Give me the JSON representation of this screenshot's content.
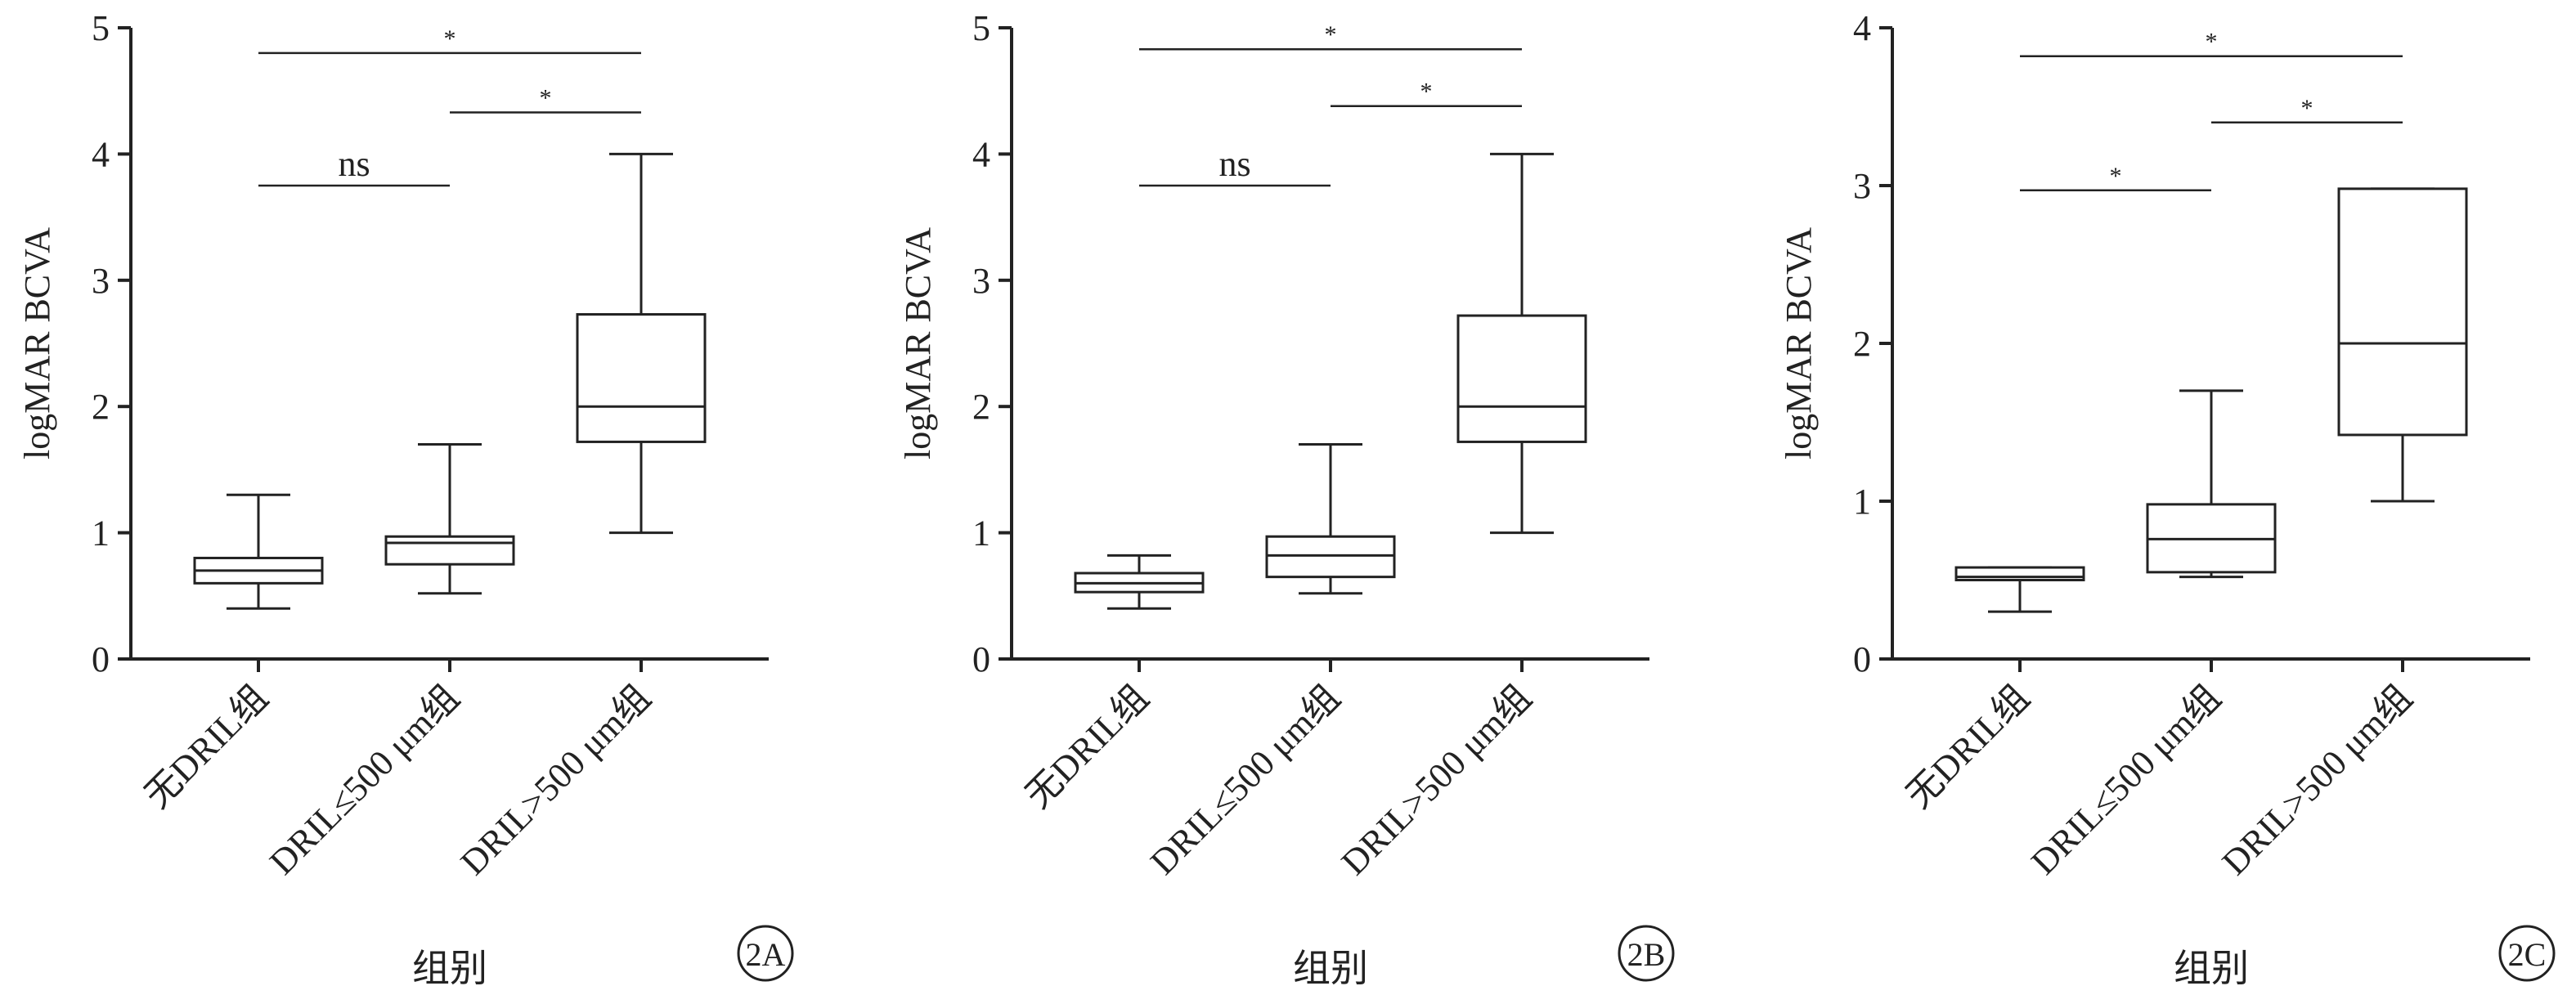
{
  "chart_data": [
    {
      "type": "box",
      "panel_label": "2A",
      "xlabel": "组别",
      "ylabel": "logMAR BCVA",
      "categories": [
        "无DRIL组",
        "DRIL≤500 μm组",
        "DRIL>500 μm组"
      ],
      "boxes": [
        {
          "min": 0.4,
          "q1": 0.6,
          "median": 0.7,
          "q3": 0.8,
          "max": 1.3
        },
        {
          "min": 0.52,
          "q1": 0.75,
          "median": 0.92,
          "q3": 0.97,
          "max": 1.7
        },
        {
          "min": 1.0,
          "q1": 1.72,
          "median": 2.0,
          "q3": 2.73,
          "max": 4.0
        }
      ],
      "ylim": [
        0,
        5
      ],
      "yticks": [
        0,
        1,
        2,
        3,
        4,
        5
      ],
      "comparisons": [
        {
          "from": 0,
          "to": 1,
          "y": 3.75,
          "label": "ns"
        },
        {
          "from": 0,
          "to": 2,
          "y": 4.8,
          "label": "*"
        },
        {
          "from": 1,
          "to": 2,
          "y": 4.33,
          "label": "*"
        }
      ]
    },
    {
      "type": "box",
      "panel_label": "2B",
      "xlabel": "组别",
      "ylabel": "logMAR BCVA",
      "categories": [
        "无DRIL组",
        "DRIL≤500 μm组",
        "DRIL>500 μm组"
      ],
      "boxes": [
        {
          "min": 0.4,
          "q1": 0.53,
          "median": 0.6,
          "q3": 0.68,
          "max": 0.82
        },
        {
          "min": 0.52,
          "q1": 0.65,
          "median": 0.82,
          "q3": 0.97,
          "max": 1.7
        },
        {
          "min": 1.0,
          "q1": 1.72,
          "median": 2.0,
          "q3": 2.72,
          "max": 4.0
        }
      ],
      "ylim": [
        0,
        5
      ],
      "yticks": [
        0,
        1,
        2,
        3,
        4,
        5
      ],
      "comparisons": [
        {
          "from": 0,
          "to": 1,
          "y": 3.75,
          "label": "ns"
        },
        {
          "from": 0,
          "to": 2,
          "y": 4.83,
          "label": "*"
        },
        {
          "from": 1,
          "to": 2,
          "y": 4.38,
          "label": "*"
        }
      ]
    },
    {
      "type": "box",
      "panel_label": "2C",
      "xlabel": "组别",
      "ylabel": "logMAR BCVA",
      "categories": [
        "无DRIL组",
        "DRIL≤500 μm组",
        "DRIL>500 μm组"
      ],
      "boxes": [
        {
          "min": 0.3,
          "q1": 0.5,
          "median": 0.52,
          "q3": 0.58,
          "max": 0.58
        },
        {
          "min": 0.52,
          "q1": 0.55,
          "median": 0.76,
          "q3": 0.98,
          "max": 1.7
        },
        {
          "min": 1.0,
          "q1": 1.42,
          "median": 2.0,
          "q3": 2.98,
          "max": 2.98
        }
      ],
      "ylim": [
        0,
        4
      ],
      "yticks": [
        0,
        1,
        2,
        3,
        4
      ],
      "comparisons": [
        {
          "from": 0,
          "to": 1,
          "y": 2.97,
          "label": "*"
        },
        {
          "from": 0,
          "to": 2,
          "y": 3.82,
          "label": "*"
        },
        {
          "from": 1,
          "to": 2,
          "y": 3.4,
          "label": "*"
        }
      ]
    }
  ]
}
